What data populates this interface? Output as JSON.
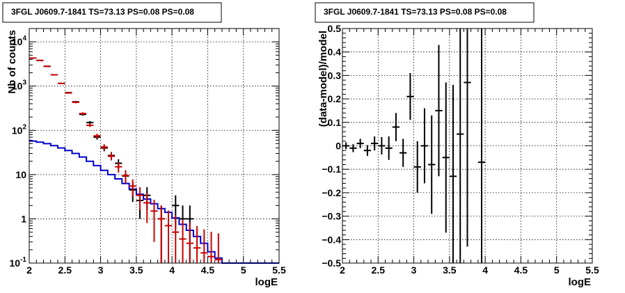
{
  "chart_data": [
    {
      "type": "scatter",
      "title": "3FGL J0609.7-1841 TS=73.13 PS=0.08 PS=0.08",
      "xlabel": "logE",
      "ylabel": "Nb of counts",
      "xlim": [
        2,
        5.5
      ],
      "ylim": [
        0.1,
        20000
      ],
      "yscale": "log",
      "grid": true,
      "x_ticks": [
        "2",
        "2.5",
        "3",
        "3.5",
        "4",
        "4.5",
        "5",
        "5.5"
      ],
      "y_ticks": [
        {
          "value": 0.1,
          "label": "10^-1",
          "base": "10",
          "exp": "-1"
        },
        {
          "value": 1,
          "label": "1",
          "base": "1",
          "exp": ""
        },
        {
          "value": 10,
          "label": "10",
          "base": "10",
          "exp": ""
        },
        {
          "value": 100,
          "label": "10^2",
          "base": "10",
          "exp": "2"
        },
        {
          "value": 1000,
          "label": "10^3",
          "base": "10",
          "exp": "3"
        },
        {
          "value": 10000,
          "label": "10^4",
          "base": "10",
          "exp": "4"
        }
      ],
      "series": [
        {
          "kind": "errorbar",
          "color": "#000000",
          "x": [
            2.05,
            2.15,
            2.25,
            2.35,
            2.45,
            2.55,
            2.65,
            2.75,
            2.85,
            2.95,
            3.05,
            3.15,
            3.25,
            3.35,
            3.45,
            3.55,
            3.65,
            3.75,
            3.85,
            3.95,
            4.05,
            4.15,
            4.25,
            4.35,
            4.45,
            4.55,
            4.65
          ],
          "y": [
            4300,
            3800,
            2800,
            1800,
            1150,
            710,
            440,
            230,
            150,
            70,
            40,
            27,
            18,
            9.3,
            4.5,
            2.6,
            3.4,
            0,
            1,
            0,
            2,
            1,
            1,
            0,
            0,
            0,
            0
          ],
          "yerr": [
            65,
            62,
            53,
            42,
            34,
            27,
            21,
            15,
            12,
            8.4,
            6.3,
            5.2,
            4.2,
            3.0,
            2.1,
            1.6,
            1.8,
            0,
            1,
            0,
            1.4,
            1,
            1,
            0,
            0,
            0,
            0
          ]
        },
        {
          "kind": "errorbar",
          "color": "#cc0000",
          "x": [
            2.05,
            2.15,
            2.25,
            2.35,
            2.45,
            2.55,
            2.65,
            2.75,
            2.85,
            2.95,
            3.05,
            3.15,
            3.25,
            3.35,
            3.45,
            3.55,
            3.65,
            3.75,
            3.85,
            3.95,
            4.05,
            4.15,
            4.25,
            4.35,
            4.45,
            4.55,
            4.65
          ],
          "y": [
            4300,
            3800,
            2800,
            1800,
            1150,
            700,
            430,
            240,
            130,
            75,
            42,
            26,
            15,
            9.5,
            5.5,
            3.4,
            2.3,
            1.5,
            1.0,
            0.7,
            0.5,
            0.35,
            0.28,
            0.22,
            0.17,
            0.14,
            0.12
          ],
          "yerr": [
            65,
            62,
            53,
            42,
            34,
            26,
            21,
            15,
            11,
            8.7,
            6.5,
            5.1,
            3.9,
            3.1,
            2.3,
            1.8,
            1.5,
            1.2,
            1.0,
            0.84,
            0.7,
            0.59,
            0.53,
            0.47,
            0.41,
            0.37,
            0.35
          ]
        },
        {
          "kind": "step",
          "color": "#0000cc",
          "x_edges": [
            2.0,
            2.1,
            2.2,
            2.3,
            2.4,
            2.5,
            2.6,
            2.7,
            2.8,
            2.9,
            3.0,
            3.1,
            3.2,
            3.3,
            3.4,
            3.5,
            3.6,
            3.7,
            3.8,
            3.9,
            4.0,
            4.1,
            4.2,
            4.3,
            4.4,
            4.5,
            4.6,
            4.7,
            5.5
          ],
          "y": [
            57,
            54,
            50,
            45,
            40,
            35,
            30,
            25,
            20,
            16,
            12.5,
            10,
            8,
            6.3,
            4.7,
            3.6,
            2.8,
            2.2,
            1.7,
            1.4,
            1.05,
            0.75,
            0.55,
            0.4,
            0.28,
            0.18,
            0.13,
            0.1
          ]
        }
      ]
    },
    {
      "type": "scatter",
      "title": "3FGL J0609.7-1841 TS=73.13 PS=0.08 PS=0.08",
      "xlabel": "logE",
      "ylabel": "(data-model)/model",
      "xlim": [
        2,
        5.5
      ],
      "ylim": [
        -0.5,
        0.5
      ],
      "grid": true,
      "x_ticks": [
        "2",
        "2.5",
        "3",
        "3.5",
        "4",
        "4.5",
        "5",
        "5.5"
      ],
      "y_ticks": [
        "0.5",
        "0.4",
        "0.3",
        "0.2",
        "0.1",
        "0",
        "−0.1",
        "−0.2",
        "−0.3",
        "−0.4",
        "−0.5"
      ],
      "series": [
        {
          "kind": "errorbar",
          "color": "#000000",
          "x": [
            2.05,
            2.15,
            2.25,
            2.35,
            2.45,
            2.55,
            2.65,
            2.75,
            2.85,
            2.95,
            3.05,
            3.15,
            3.25,
            3.35,
            3.45,
            3.55,
            3.65,
            3.75,
            3.95
          ],
          "y": [
            0.0,
            -0.01,
            0.01,
            -0.02,
            0.01,
            0.0,
            -0.01,
            0.08,
            -0.03,
            0.21,
            -0.09,
            0.0,
            -0.08,
            0.15,
            -0.05,
            -0.13,
            0.05,
            0.27,
            -0.07
          ],
          "yerr": [
            0.015,
            0.017,
            0.02,
            0.023,
            0.03,
            0.037,
            0.05,
            0.06,
            0.06,
            0.1,
            0.11,
            0.16,
            0.21,
            0.28,
            0.32,
            0.39,
            0.55,
            0.7,
            1.0
          ]
        }
      ]
    }
  ]
}
